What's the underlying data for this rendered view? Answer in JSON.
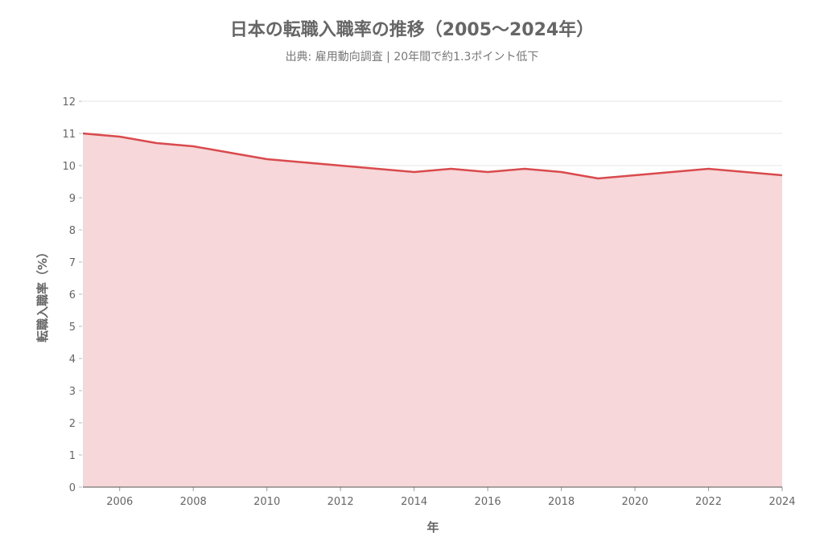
{
  "chart_data": {
    "type": "area",
    "title": "日本の転職入職率の推移（2005〜2024年）",
    "subtitle": "出典: 雇用動向調査 | 20年間で約1.3ポイント低下",
    "xlabel": "年",
    "ylabel": "転職入職率（%）",
    "x": [
      2005,
      2006,
      2007,
      2008,
      2009,
      2010,
      2011,
      2012,
      2013,
      2014,
      2015,
      2016,
      2017,
      2018,
      2019,
      2020,
      2021,
      2022,
      2023,
      2024
    ],
    "values": [
      11.0,
      10.9,
      10.7,
      10.6,
      10.4,
      10.2,
      10.1,
      10.0,
      9.9,
      9.8,
      9.9,
      9.8,
      9.9,
      9.8,
      9.6,
      9.7,
      9.8,
      9.9,
      9.8,
      9.7
    ],
    "xlim": [
      2005,
      2024
    ],
    "ylim": [
      0,
      12
    ],
    "x_ticks": [
      "2006",
      "2008",
      "2010",
      "2012",
      "2014",
      "2016",
      "2018",
      "2020",
      "2022",
      "2024"
    ],
    "y_ticks": [
      "0",
      "1",
      "2",
      "3",
      "4",
      "5",
      "6",
      "7",
      "8",
      "9",
      "10",
      "11",
      "12"
    ],
    "grid": true,
    "colors": {
      "line": "#d94a4d",
      "fill": "#f7d7d9"
    }
  }
}
